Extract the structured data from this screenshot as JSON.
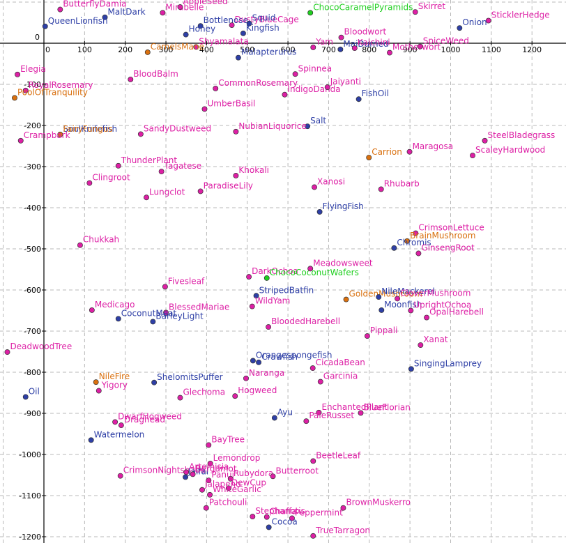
{
  "chart_data": {
    "type": "scatter",
    "title": "",
    "xlabel": "",
    "ylabel": "",
    "xlim": [
      -65,
      1270
    ],
    "ylim": [
      -1228,
      92
    ],
    "grid": true,
    "x_ticks": [
      100,
      200,
      300,
      400,
      500,
      600,
      700,
      800,
      900,
      1000,
      1100,
      1200
    ],
    "y_ticks": [
      -100,
      -200,
      -300,
      -400,
      -500,
      -600,
      -700,
      -800,
      -900,
      -1000,
      -1100,
      -1200
    ],
    "origin_labels": {
      "x": "0",
      "y": "0"
    },
    "colors": {
      "magenta": "#dd1fa5",
      "blue": "#2e3fa6",
      "orange": "#d9700f",
      "green": "#1fcf1f"
    },
    "points": [
      {
        "name": "ButterflyDamia",
        "x": 40,
        "y": 82,
        "color": "magenta"
      },
      {
        "name": "MaltDark",
        "x": 150,
        "y": 63,
        "color": "blue"
      },
      {
        "name": "QueenLionfish",
        "x": 3,
        "y": 41,
        "color": "blue"
      },
      {
        "name": "Mirabelle",
        "x": 292,
        "y": 74,
        "color": "magenta"
      },
      {
        "name": "AppleSeed",
        "x": 335,
        "y": 88,
        "color": "magenta"
      },
      {
        "name": "Bottlenose",
        "x": 385,
        "y": 42,
        "color": "blue"
      },
      {
        "name": "Honey",
        "x": 349,
        "y": 21,
        "color": "blue"
      },
      {
        "name": "DustyBlueCage",
        "x": 462,
        "y": 44,
        "color": "magenta"
      },
      {
        "name": "Squid",
        "x": 505,
        "y": 48,
        "color": "blue"
      },
      {
        "name": "Kingfish",
        "x": 490,
        "y": 24,
        "color": "blue"
      },
      {
        "name": "ChocoCaramelPyramids",
        "x": 655,
        "y": 74,
        "color": "green"
      },
      {
        "name": "Skirret",
        "x": 913,
        "y": 76,
        "color": "magenta"
      },
      {
        "name": "SticklerHedge",
        "x": 1093,
        "y": 55,
        "color": "magenta"
      },
      {
        "name": "Onion",
        "x": 1022,
        "y": 37,
        "color": "blue"
      },
      {
        "name": "Bloodwort",
        "x": 731,
        "y": 14,
        "color": "magenta"
      },
      {
        "name": "Shyamalata",
        "x": 374,
        "y": -9,
        "color": "magenta"
      },
      {
        "name": "CamelsMane",
        "x": 255,
        "y": -22,
        "color": "orange"
      },
      {
        "name": "Malapterurus",
        "x": 478,
        "y": -35,
        "color": "blue"
      },
      {
        "name": "Yam",
        "x": 662,
        "y": -10,
        "color": "magenta"
      },
      {
        "name": "MaiDurned",
        "x": 729,
        "y": -15,
        "color": "blue"
      },
      {
        "name": "Kalchini",
        "x": 764,
        "y": -12,
        "color": "magenta"
      },
      {
        "name": "Motherwort",
        "x": 850,
        "y": -23,
        "color": "magenta"
      },
      {
        "name": "SpiceWeed",
        "x": 925,
        "y": -8,
        "color": "magenta"
      },
      {
        "name": "Elegia",
        "x": -65,
        "y": -76,
        "color": "magenta"
      },
      {
        "name": "Spinnea",
        "x": 618,
        "y": -75,
        "color": "magenta"
      },
      {
        "name": "BloodBalm",
        "x": 213,
        "y": -88,
        "color": "magenta"
      },
      {
        "name": "CommonRosemary",
        "x": 422,
        "y": -110,
        "color": "magenta"
      },
      {
        "name": "IndigoDanda",
        "x": 592,
        "y": -125,
        "color": "magenta"
      },
      {
        "name": "Jaiyanti",
        "x": 697,
        "y": -107,
        "color": "magenta"
      },
      {
        "name": "RoyalRosemary",
        "x": -45,
        "y": -115,
        "color": "magenta"
      },
      {
        "name": "PoolOfTranquility",
        "x": -72,
        "y": -133,
        "color": "orange"
      },
      {
        "name": "FishOil",
        "x": 774,
        "y": -136,
        "color": "blue"
      },
      {
        "name": "UmberBasil",
        "x": 395,
        "y": -160,
        "color": "magenta"
      },
      {
        "name": "Salt",
        "x": 648,
        "y": -202,
        "color": "blue"
      },
      {
        "name": "NubianLiquorice",
        "x": 472,
        "y": -215,
        "color": "magenta"
      },
      {
        "name": "SoulKnifefish",
        "x": 40,
        "y": -222,
        "color": "blue"
      },
      {
        "name": "FairyFungus",
        "x": 40,
        "y": -222,
        "color": "orange"
      },
      {
        "name": "SandyDustweed",
        "x": 238,
        "y": -221,
        "color": "magenta"
      },
      {
        "name": "Crampbark",
        "x": -57,
        "y": -237,
        "color": "magenta"
      },
      {
        "name": "SteelBladegrass",
        "x": 1084,
        "y": -237,
        "color": "magenta"
      },
      {
        "name": "Carrion",
        "x": 799,
        "y": -278,
        "color": "orange"
      },
      {
        "name": "Maragosa",
        "x": 899,
        "y": -264,
        "color": "magenta"
      },
      {
        "name": "ScaleyHardwood",
        "x": 1054,
        "y": -273,
        "color": "magenta"
      },
      {
        "name": "ThunderPlant",
        "x": 183,
        "y": -298,
        "color": "magenta"
      },
      {
        "name": "Tagatese",
        "x": 289,
        "y": -312,
        "color": "magenta"
      },
      {
        "name": "Khokali",
        "x": 472,
        "y": -322,
        "color": "magenta"
      },
      {
        "name": "Clingroot",
        "x": 112,
        "y": -340,
        "color": "magenta"
      },
      {
        "name": "Xanosi",
        "x": 665,
        "y": -350,
        "color": "magenta"
      },
      {
        "name": "Rhubarb",
        "x": 829,
        "y": -355,
        "color": "magenta"
      },
      {
        "name": "ParadiseLily",
        "x": 385,
        "y": -360,
        "color": "magenta"
      },
      {
        "name": "Lungclot",
        "x": 252,
        "y": -375,
        "color": "magenta"
      },
      {
        "name": "FlyingFish",
        "x": 678,
        "y": -410,
        "color": "blue"
      },
      {
        "name": "CrimsonLettuce",
        "x": 914,
        "y": -462,
        "color": "magenta"
      },
      {
        "name": "BrainMushroom",
        "x": 893,
        "y": -481,
        "color": "orange"
      },
      {
        "name": "Chromis",
        "x": 861,
        "y": -498,
        "color": "blue"
      },
      {
        "name": "GinsengRoot",
        "x": 921,
        "y": -511,
        "color": "magenta"
      },
      {
        "name": "Chukkah",
        "x": 89,
        "y": -491,
        "color": "magenta"
      },
      {
        "name": "DarkOchoa",
        "x": 504,
        "y": -568,
        "color": "magenta"
      },
      {
        "name": "ChocoCoconutWafers",
        "x": 548,
        "y": -571,
        "color": "green"
      },
      {
        "name": "Meadowsweet",
        "x": 655,
        "y": -548,
        "color": "magenta"
      },
      {
        "name": "Fivesleaf",
        "x": 298,
        "y": -592,
        "color": "magenta"
      },
      {
        "name": "StripedBatfin",
        "x": 522,
        "y": -614,
        "color": "blue"
      },
      {
        "name": "GoldenMushroom",
        "x": 743,
        "y": -623,
        "color": "orange"
      },
      {
        "name": "NileMackerel",
        "x": 823,
        "y": -617,
        "color": "blue"
      },
      {
        "name": "CloverMushroom",
        "x": 869,
        "y": -621,
        "color": "magenta"
      },
      {
        "name": "WildYam",
        "x": 512,
        "y": -640,
        "color": "magenta"
      },
      {
        "name": "Moonfish",
        "x": 830,
        "y": -649,
        "color": "blue"
      },
      {
        "name": "UprightOchoa",
        "x": 902,
        "y": -650,
        "color": "magenta"
      },
      {
        "name": "Medicago",
        "x": 118,
        "y": -649,
        "color": "magenta"
      },
      {
        "name": "BlessedMariae",
        "x": 300,
        "y": -655,
        "color": "magenta"
      },
      {
        "name": "CoconutMeat",
        "x": 183,
        "y": -670,
        "color": "blue"
      },
      {
        "name": "BarleyLight",
        "x": 268,
        "y": -677,
        "color": "blue"
      },
      {
        "name": "OpalHarebell",
        "x": 941,
        "y": -667,
        "color": "magenta"
      },
      {
        "name": "BloodedHarebell",
        "x": 552,
        "y": -690,
        "color": "magenta"
      },
      {
        "name": "Pippali",
        "x": 795,
        "y": -712,
        "color": "magenta"
      },
      {
        "name": "Xanat",
        "x": 926,
        "y": -734,
        "color": "magenta"
      },
      {
        "name": "DeadwoodTree",
        "x": -90,
        "y": -751,
        "color": "magenta"
      },
      {
        "name": "Orangespongefish",
        "x": 514,
        "y": -772,
        "color": "blue"
      },
      {
        "name": "Crawfish",
        "x": 528,
        "y": -776,
        "color": "blue"
      },
      {
        "name": "CicadaBean",
        "x": 661,
        "y": -790,
        "color": "magenta"
      },
      {
        "name": "SingingLamprey",
        "x": 903,
        "y": -792,
        "color": "blue"
      },
      {
        "name": "Naranga",
        "x": 497,
        "y": -815,
        "color": "magenta"
      },
      {
        "name": "Garcinia",
        "x": 680,
        "y": -823,
        "color": "magenta"
      },
      {
        "name": "NileFire",
        "x": 128,
        "y": -824,
        "color": "orange"
      },
      {
        "name": "ShelomitsPuffer",
        "x": 271,
        "y": -825,
        "color": "blue"
      },
      {
        "name": "Yigory",
        "x": 135,
        "y": -845,
        "color": "magenta"
      },
      {
        "name": "Glechoma",
        "x": 335,
        "y": -862,
        "color": "magenta"
      },
      {
        "name": "Hogweed",
        "x": 470,
        "y": -858,
        "color": "magenta"
      },
      {
        "name": "Oil",
        "x": -45,
        "y": -860,
        "color": "blue"
      },
      {
        "name": "Ayu",
        "x": 567,
        "y": -911,
        "color": "blue"
      },
      {
        "name": "EnchantedPlant",
        "x": 676,
        "y": -898,
        "color": "magenta"
      },
      {
        "name": "PaleRusset",
        "x": 645,
        "y": -919,
        "color": "magenta"
      },
      {
        "name": "BlueFlorian",
        "x": 779,
        "y": -899,
        "color": "magenta"
      },
      {
        "name": "DwarfHogweed",
        "x": 175,
        "y": -921,
        "color": "magenta"
      },
      {
        "name": "Draghead",
        "x": 190,
        "y": -929,
        "color": "magenta"
      },
      {
        "name": "Watermelon",
        "x": 116,
        "y": -965,
        "color": "blue"
      },
      {
        "name": "BayTree",
        "x": 405,
        "y": -977,
        "color": "magenta"
      },
      {
        "name": "BeetleLeaf",
        "x": 662,
        "y": -1016,
        "color": "magenta"
      },
      {
        "name": "Lemondrop",
        "x": 409,
        "y": -1022,
        "color": "magenta"
      },
      {
        "name": "CrimsonNightshade",
        "x": 188,
        "y": -1052,
        "color": "magenta"
      },
      {
        "name": "Artemisia",
        "x": 350,
        "y": -1043,
        "color": "magenta"
      },
      {
        "name": "Jaifal",
        "x": 348,
        "y": -1055,
        "color": "blue"
      },
      {
        "name": "Bergamot",
        "x": 366,
        "y": -1048,
        "color": "magenta"
      },
      {
        "name": "Panui",
        "x": 405,
        "y": -1063,
        "color": "magenta"
      },
      {
        "name": "Rubydora",
        "x": 459,
        "y": -1059,
        "color": "magenta"
      },
      {
        "name": "Butterroot",
        "x": 563,
        "y": -1053,
        "color": "magenta"
      },
      {
        "name": "DewCup",
        "x": 454,
        "y": -1082,
        "color": "magenta"
      },
      {
        "name": "Jalapeno",
        "x": 389,
        "y": -1086,
        "color": "magenta"
      },
      {
        "name": "WhiteGarlic",
        "x": 408,
        "y": -1098,
        "color": "magenta"
      },
      {
        "name": "Patchouli",
        "x": 399,
        "y": -1130,
        "color": "magenta"
      },
      {
        "name": "BrownMuskerro",
        "x": 736,
        "y": -1130,
        "color": "magenta"
      },
      {
        "name": "Stephanotis",
        "x": 513,
        "y": -1151,
        "color": "magenta"
      },
      {
        "name": "Chaffa",
        "x": 548,
        "y": -1152,
        "color": "magenta"
      },
      {
        "name": "Peppermint",
        "x": 610,
        "y": -1155,
        "color": "magenta"
      },
      {
        "name": "Cocoa",
        "x": 553,
        "y": -1177,
        "color": "blue"
      },
      {
        "name": "TrueTarragon",
        "x": 662,
        "y": -1198,
        "color": "magenta"
      }
    ]
  }
}
